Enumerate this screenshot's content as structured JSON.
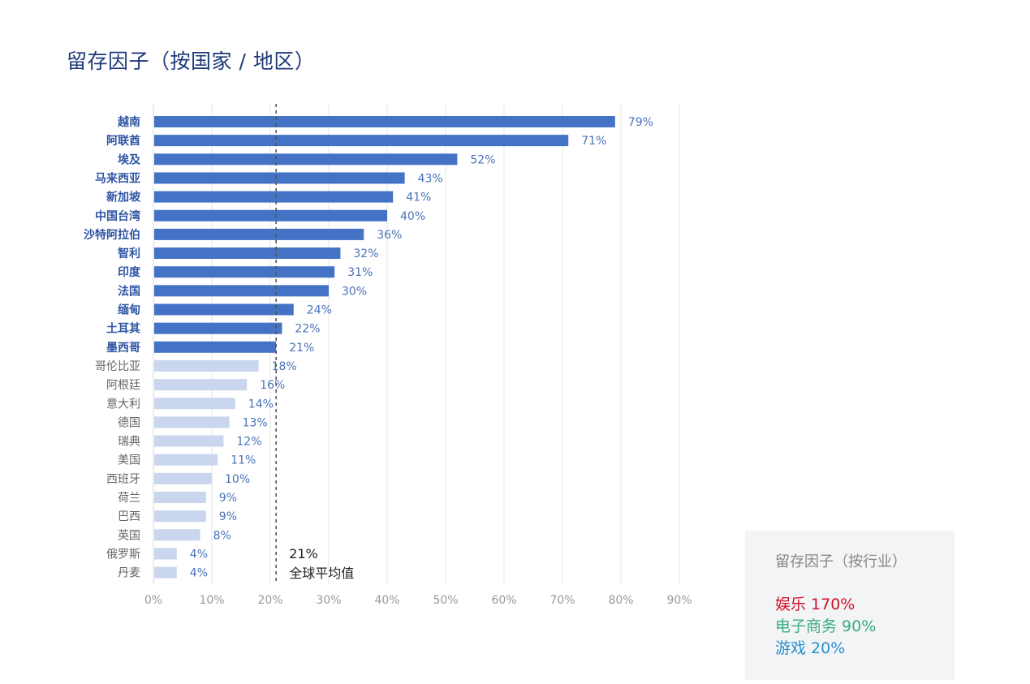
{
  "chart_data": {
    "type": "bar",
    "orientation": "horizontal",
    "title": "留存因子（按国家 / 地区）",
    "categories": [
      "越南",
      "阿联酋",
      "埃及",
      "马来西亚",
      "新加坡",
      "中国台湾",
      "沙特阿拉伯",
      "智利",
      "印度",
      "法国",
      "缅甸",
      "土耳其",
      "墨西哥",
      "哥伦比亚",
      "阿根廷",
      "意大利",
      "德国",
      "瑞典",
      "美国",
      "西班牙",
      "荷兰",
      "巴西",
      "英国",
      "俄罗斯",
      "丹麦"
    ],
    "values": [
      79,
      71,
      52,
      43,
      41,
      40,
      36,
      32,
      31,
      30,
      24,
      22,
      21,
      18,
      16,
      14,
      13,
      12,
      11,
      10,
      9,
      9,
      8,
      4,
      4
    ],
    "value_labels": [
      "79%",
      "71%",
      "52%",
      "43%",
      "41%",
      "40%",
      "36%",
      "32%",
      "31%",
      "30%",
      "24%",
      "22%",
      "21%",
      "18%",
      "16%",
      "14%",
      "13%",
      "12%",
      "11%",
      "10%",
      "9%",
      "9%",
      "8%",
      "4%",
      "4%"
    ],
    "xlim": [
      0,
      90
    ],
    "x_ticks": [
      0,
      10,
      20,
      30,
      40,
      50,
      60,
      70,
      80,
      90
    ],
    "x_tick_labels": [
      "0%",
      "10%",
      "20%",
      "30%",
      "40%",
      "50%",
      "60%",
      "70%",
      "80%",
      "90%"
    ],
    "grid": true,
    "reference_line": {
      "value": 21,
      "label_value": "21%",
      "label_text": "全球平均值"
    },
    "colors": {
      "above_average": "#4472c4",
      "below_average": "#c9d6ee",
      "value_label": "#4a72b8",
      "category_above": "#2f55a4",
      "category_below": "#666666",
      "grid": "#e6e6e6",
      "tick": "#999999"
    }
  },
  "industry_legend": {
    "title": "留存因子（按行业）",
    "items": [
      {
        "label": "娱乐 170%",
        "color": "#d0102a"
      },
      {
        "label": "电子商务 90%",
        "color": "#3aaa84"
      },
      {
        "label": "游戏 20%",
        "color": "#2a8fcf"
      }
    ]
  }
}
